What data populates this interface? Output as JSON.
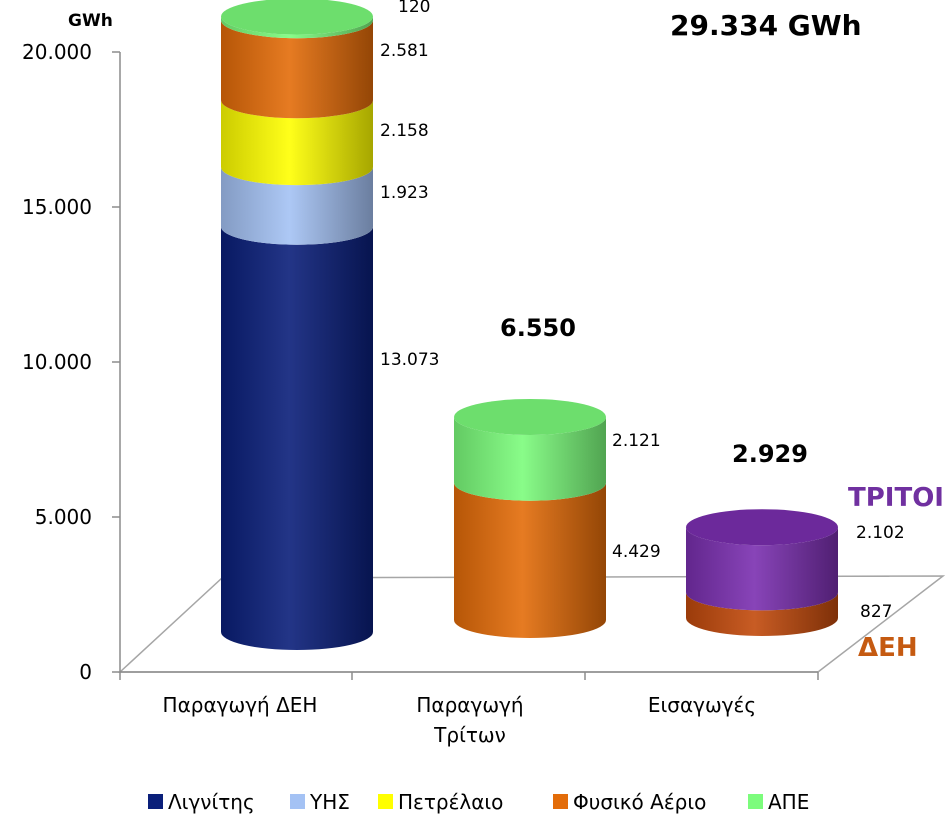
{
  "chart_data": {
    "type": "bar",
    "stacked": true,
    "style": "3d-cylinder",
    "ylabel": "GWh",
    "grand_total": "29.334 GWh",
    "ylim": [
      0,
      20000
    ],
    "yticks": [
      "0",
      "5.000",
      "10.000",
      "15.000",
      "20.000"
    ],
    "ytick_values": [
      0,
      5000,
      10000,
      15000,
      20000
    ],
    "grid": false,
    "legend_position": "bottom",
    "bars": [
      {
        "category": "Παραγωγή ΔΕΗ",
        "segments": [
          {
            "series": "Λιγνίτης",
            "value": 13073,
            "label": "13.073"
          },
          {
            "series": "ΥΗΣ",
            "value": 1923,
            "label": "1.923"
          },
          {
            "series": "Πετρέλαιο",
            "value": 2158,
            "label": "2.158"
          },
          {
            "series": "Φυσικό Αέριο",
            "value": 2581,
            "label": "2.581"
          },
          {
            "series": "ΑΠΕ",
            "value": 120,
            "label": "120"
          }
        ]
      },
      {
        "category": "Παραγωγή Τρίτων",
        "category_lines": [
          "Παραγωγή",
          "Τρίτων"
        ],
        "total_label": "6.550",
        "segments": [
          {
            "series": "Φυσικό Αέριο",
            "value": 4429,
            "label": "4.429"
          },
          {
            "series": "ΑΠΕ",
            "value": 2121,
            "label": "2.121"
          }
        ]
      },
      {
        "category": "Εισαγωγές",
        "total_label": "2.929",
        "segments": [
          {
            "series": "ΔΕΗ",
            "value": 827,
            "label": "827"
          },
          {
            "series": "ΤΡΙΤΟΙ",
            "value": 2102,
            "label": "2.102"
          }
        ]
      }
    ],
    "annotations": [
      {
        "text": "ΤΡΙΤΟΙ",
        "color": "#7030a0"
      },
      {
        "text": "ΔΕΗ",
        "color": "#c55a11"
      }
    ],
    "legend": [
      {
        "name": "Λιγνίτης",
        "color": "#0a1f7a"
      },
      {
        "name": "ΥΗΣ",
        "color": "#a4c2f4"
      },
      {
        "name": "Πετρέλαιο",
        "color": "#ffff00"
      },
      {
        "name": "Φυσικό Αέριο",
        "color": "#e36c09"
      },
      {
        "name": "ΑΠΕ",
        "color": "#7cfc7c"
      }
    ],
    "segment_colors": {
      "Λιγνίτης": "#0a1f7a",
      "ΥΗΣ": "#a4c2f4",
      "Πετρέλαιο": "#ffff00",
      "Φυσικό Αέριο": "#e36c09",
      "ΑΠΕ": "#7cfc7c",
      "ΔΕΗ": "#c24a0c",
      "ΤΡΙΤΟΙ": "#7b2fb0"
    }
  }
}
